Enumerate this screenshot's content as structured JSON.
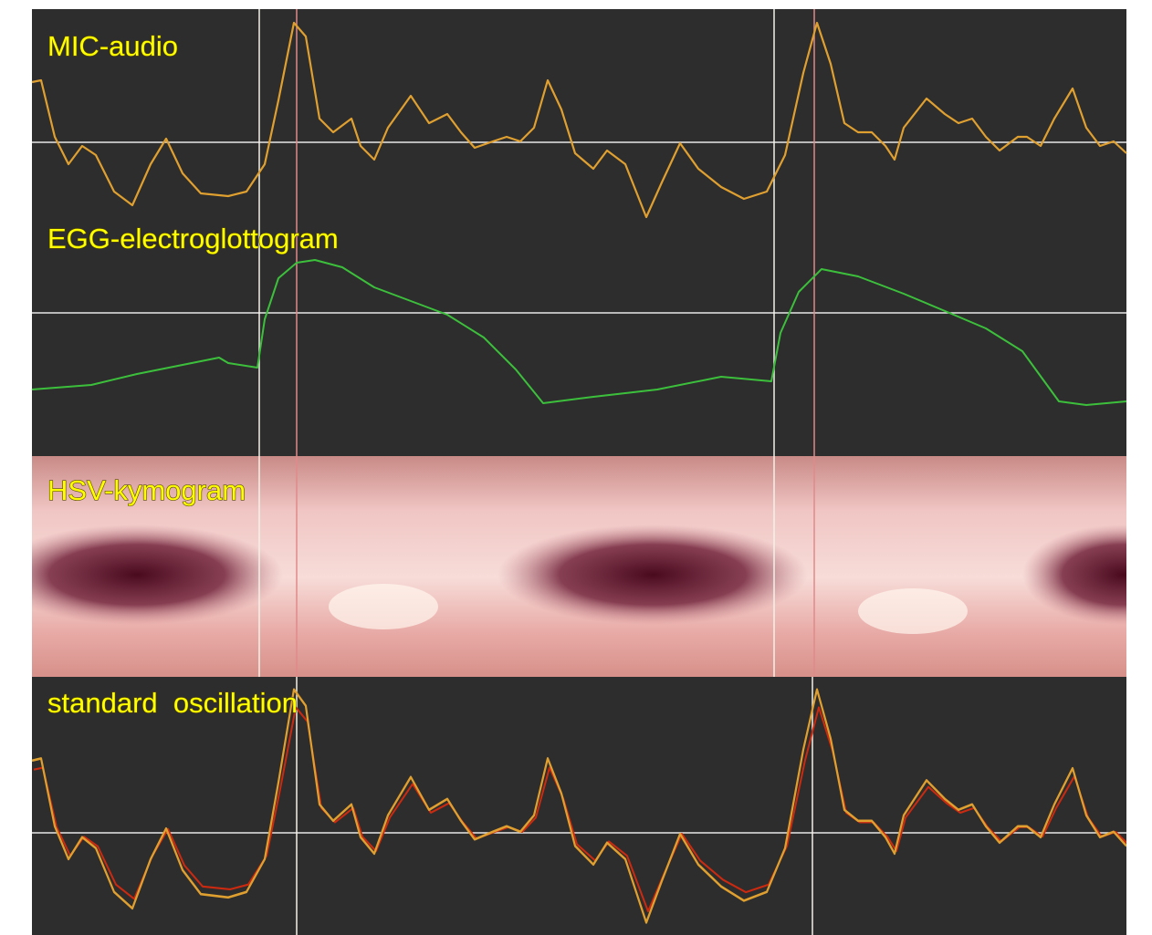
{
  "panels": [
    {
      "label": "MIC-audio"
    },
    {
      "label": "EGG-electroglottogram"
    },
    {
      "label": "HSV-kymogram"
    },
    {
      "label": "standard  oscillation"
    }
  ]
}
